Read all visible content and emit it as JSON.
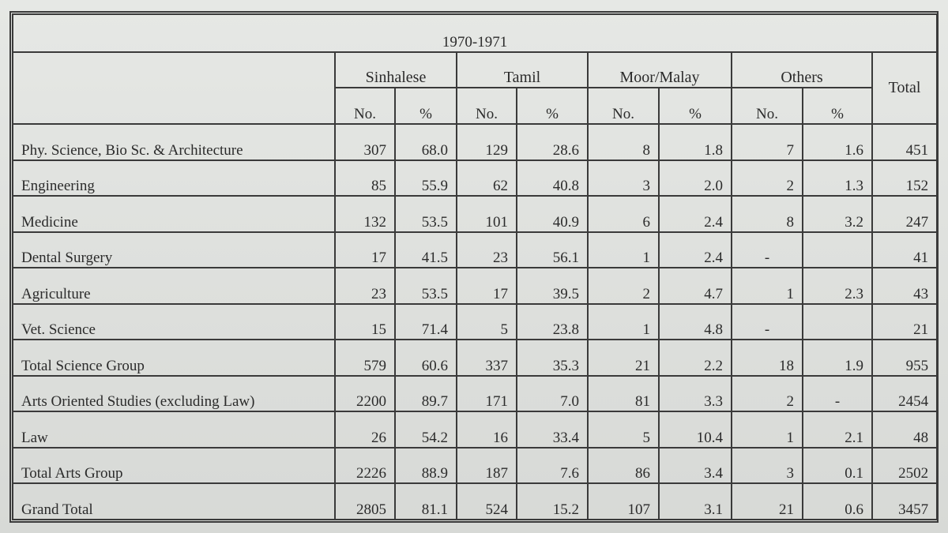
{
  "table": {
    "title": "1970-1971",
    "groups": [
      "Sinhalese",
      "Tamil",
      "Moor/Malay",
      "Others"
    ],
    "total_header": "Total",
    "sub_headers": [
      "No.",
      "%"
    ],
    "rows": [
      {
        "label": "Phy. Science, Bio Sc. & Architecture",
        "cells": [
          "307",
          "68.0",
          "129",
          "28.6",
          "8",
          "1.8",
          "7",
          "1.6",
          "451"
        ]
      },
      {
        "label": "Engineering",
        "cells": [
          "85",
          "55.9",
          "62",
          "40.8",
          "3",
          "2.0",
          "2",
          "1.3",
          "152"
        ]
      },
      {
        "label": "Medicine",
        "cells": [
          "132",
          "53.5",
          "101",
          "40.9",
          "6",
          "2.4",
          "8",
          "3.2",
          "247"
        ]
      },
      {
        "label": "Dental Surgery",
        "cells": [
          "17",
          "41.5",
          "23",
          "56.1",
          "1",
          "2.4",
          "-",
          "",
          "41"
        ]
      },
      {
        "label": "Agriculture",
        "cells": [
          "23",
          "53.5",
          "17",
          "39.5",
          "2",
          "4.7",
          "1",
          "2.3",
          "43"
        ]
      },
      {
        "label": "Vet. Science",
        "cells": [
          "15",
          "71.4",
          "5",
          "23.8",
          "1",
          "4.8",
          "-",
          "",
          "21"
        ]
      },
      {
        "label": "Total Science Group",
        "cells": [
          "579",
          "60.6",
          "337",
          "35.3",
          "21",
          "2.2",
          "18",
          "1.9",
          "955"
        ]
      },
      {
        "label": "Arts Oriented Studies (excluding Law)",
        "cells": [
          "2200",
          "89.7",
          "171",
          "7.0",
          "81",
          "3.3",
          "2",
          "-",
          "2454"
        ]
      },
      {
        "label": "Law",
        "cells": [
          "26",
          "54.2",
          "16",
          "33.4",
          "5",
          "10.4",
          "1",
          "2.1",
          "48"
        ]
      },
      {
        "label": "Total Arts Group",
        "cells": [
          "2226",
          "88.9",
          "187",
          "7.6",
          "86",
          "3.4",
          "3",
          "0.1",
          "2502"
        ]
      },
      {
        "label": "Grand Total",
        "cells": [
          "2805",
          "81.1",
          "524",
          "15.2",
          "107",
          "3.1",
          "21",
          "0.6",
          "3457"
        ]
      }
    ]
  }
}
